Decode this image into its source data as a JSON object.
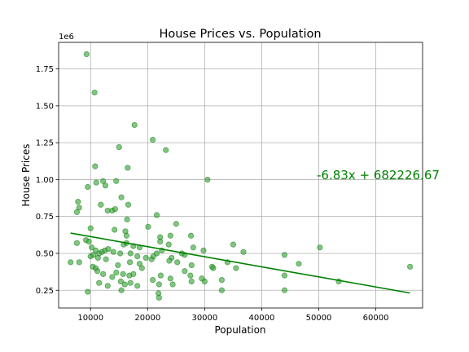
{
  "chart_data": {
    "type": "scatter",
    "title": "House Prices vs. Population",
    "xlabel": "Population",
    "ylabel": "House Prices",
    "y_offset_label": "1e6",
    "xlim": [
      4400,
      68200
    ],
    "ylim": [
      130000,
      1930000
    ],
    "xticks": [
      10000,
      20000,
      30000,
      40000,
      50000,
      60000
    ],
    "yticks": [
      0.25,
      0.5,
      0.75,
      1.0,
      1.25,
      1.5,
      1.75
    ],
    "ytick_labels": [
      "0.25",
      "0.50",
      "0.75",
      "1.00",
      "1.25",
      "1.50",
      "1.75"
    ],
    "grid": true,
    "point_color": "#2ca02c",
    "line_color": "#008000",
    "annotation": "-6.83x + 682226.67",
    "annotation_color": "#008000",
    "regression": {
      "slope": -6.83,
      "intercept": 682226.67,
      "x_range": [
        6500,
        66000
      ]
    },
    "points": [
      [
        9300,
        1850000
      ],
      [
        10700,
        1590000
      ],
      [
        17700,
        1370000
      ],
      [
        20900,
        1270000
      ],
      [
        15000,
        1220000
      ],
      [
        23200,
        1200000
      ],
      [
        10800,
        1090000
      ],
      [
        16500,
        1080000
      ],
      [
        30500,
        1000000
      ],
      [
        14500,
        990000
      ],
      [
        9500,
        950000
      ],
      [
        11000,
        980000
      ],
      [
        12200,
        990000
      ],
      [
        12600,
        960000
      ],
      [
        15400,
        880000
      ],
      [
        7800,
        850000
      ],
      [
        8000,
        810000
      ],
      [
        7600,
        780000
      ],
      [
        11800,
        830000
      ],
      [
        13000,
        790000
      ],
      [
        13800,
        790000
      ],
      [
        14300,
        800000
      ],
      [
        16600,
        830000
      ],
      [
        16400,
        730000
      ],
      [
        21600,
        760000
      ],
      [
        10000,
        670000
      ],
      [
        14200,
        660000
      ],
      [
        16100,
        650000
      ],
      [
        16300,
        620000
      ],
      [
        20100,
        680000
      ],
      [
        25000,
        700000
      ],
      [
        22200,
        610000
      ],
      [
        24000,
        620000
      ],
      [
        27600,
        620000
      ],
      [
        9200,
        590000
      ],
      [
        9700,
        580000
      ],
      [
        7600,
        570000
      ],
      [
        15800,
        560000
      ],
      [
        16300,
        570000
      ],
      [
        17500,
        550000
      ],
      [
        18600,
        540000
      ],
      [
        22200,
        580000
      ],
      [
        23700,
        560000
      ],
      [
        28000,
        540000
      ],
      [
        29800,
        520000
      ],
      [
        35000,
        560000
      ],
      [
        36800,
        510000
      ],
      [
        50200,
        540000
      ],
      [
        10200,
        540000
      ],
      [
        10900,
        520000
      ],
      [
        11500,
        500000
      ],
      [
        12000,
        510000
      ],
      [
        12500,
        520000
      ],
      [
        13100,
        530000
      ],
      [
        14000,
        510000
      ],
      [
        15200,
        500000
      ],
      [
        17000,
        500000
      ],
      [
        18200,
        480000
      ],
      [
        19700,
        470000
      ],
      [
        21600,
        500000
      ],
      [
        22500,
        520000
      ],
      [
        24200,
        470000
      ],
      [
        26500,
        490000
      ],
      [
        10000,
        480000
      ],
      [
        10500,
        490000
      ],
      [
        11300,
        470000
      ],
      [
        12700,
        460000
      ],
      [
        14800,
        420000
      ],
      [
        16900,
        440000
      ],
      [
        18600,
        430000
      ],
      [
        20700,
        460000
      ],
      [
        23800,
        450000
      ],
      [
        25200,
        440000
      ],
      [
        27700,
        420000
      ],
      [
        31300,
        410000
      ],
      [
        34000,
        440000
      ],
      [
        44000,
        490000
      ],
      [
        46500,
        430000
      ],
      [
        10400,
        410000
      ],
      [
        10900,
        400000
      ],
      [
        11200,
        380000
      ],
      [
        12200,
        360000
      ],
      [
        13800,
        340000
      ],
      [
        14500,
        370000
      ],
      [
        15700,
        360000
      ],
      [
        16800,
        350000
      ],
      [
        17500,
        360000
      ],
      [
        19000,
        400000
      ],
      [
        22300,
        350000
      ],
      [
        24000,
        330000
      ],
      [
        26500,
        380000
      ],
      [
        27500,
        350000
      ],
      [
        31500,
        400000
      ],
      [
        35500,
        400000
      ],
      [
        44000,
        350000
      ],
      [
        6500,
        440000
      ],
      [
        8000,
        440000
      ],
      [
        11500,
        300000
      ],
      [
        13000,
        280000
      ],
      [
        15300,
        310000
      ],
      [
        16000,
        290000
      ],
      [
        17000,
        300000
      ],
      [
        18200,
        280000
      ],
      [
        20900,
        320000
      ],
      [
        22000,
        290000
      ],
      [
        24400,
        290000
      ],
      [
        27700,
        310000
      ],
      [
        30000,
        310000
      ],
      [
        33000,
        320000
      ],
      [
        33000,
        250000
      ],
      [
        44000,
        250000
      ],
      [
        53500,
        310000
      ],
      [
        9500,
        240000
      ],
      [
        15400,
        250000
      ],
      [
        21900,
        230000
      ],
      [
        22000,
        200000
      ],
      [
        29500,
        330000
      ],
      [
        21000,
        480000
      ],
      [
        26000,
        500000
      ],
      [
        66000,
        410000
      ]
    ]
  }
}
